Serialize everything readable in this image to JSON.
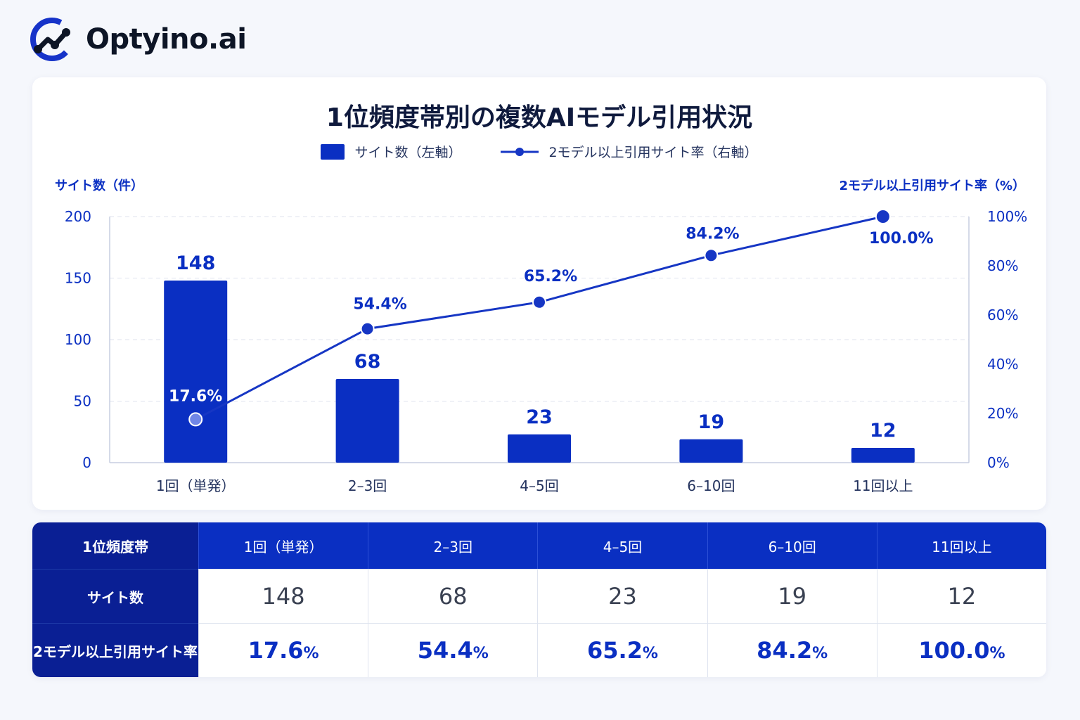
{
  "brand": {
    "name": "Optyino.ai",
    "logo_icon": "chart-node-icon"
  },
  "chart_data": {
    "type": "bar+line",
    "title": "1位頻度帯別の複数AIモデル引用状況",
    "categories": [
      "1回（単発）",
      "2–3回",
      "4–5回",
      "6–10回",
      "11回以上"
    ],
    "series": [
      {
        "name": "サイト数（左軸）",
        "type": "bar",
        "axis": "left",
        "values": [
          148,
          68,
          23,
          19,
          12
        ],
        "labels": [
          "148",
          "68",
          "23",
          "19",
          "12"
        ]
      },
      {
        "name": "2モデル以上引用サイト率（右軸）",
        "type": "line",
        "axis": "right",
        "values": [
          17.6,
          54.4,
          65.2,
          84.2,
          100.0
        ],
        "labels": [
          "17.6%",
          "54.4%",
          "65.2%",
          "84.2%",
          "100.0%"
        ]
      }
    ],
    "ylabel_left": "サイト数（件）",
    "ylabel_right": "2モデル以上引用サイト率（%）",
    "ylim_left": [
      0,
      200
    ],
    "ylim_right": [
      0,
      100
    ],
    "yticks_left": [
      "0",
      "50",
      "100",
      "150",
      "200"
    ],
    "yticks_right": [
      "0%",
      "20%",
      "40%",
      "60%",
      "80%",
      "100%"
    ],
    "grid": true,
    "legend": "top-center",
    "colors": {
      "bar": "#0a2fc2",
      "line": "#1636c4",
      "first_point": "#6f86e6"
    }
  },
  "table": {
    "header_label": "1位頻度帯",
    "columns": [
      "1回（単発）",
      "2–3回",
      "4–5回",
      "6–10回",
      "11回以上"
    ],
    "rows": [
      {
        "label": "サイト数",
        "cells": [
          "148",
          "68",
          "23",
          "19",
          "12"
        ]
      },
      {
        "label": "2モデル以上引用サイト率",
        "cells": [
          "17.6",
          "54.4",
          "65.2",
          "84.2",
          "100.0"
        ],
        "unit": "%"
      }
    ]
  }
}
